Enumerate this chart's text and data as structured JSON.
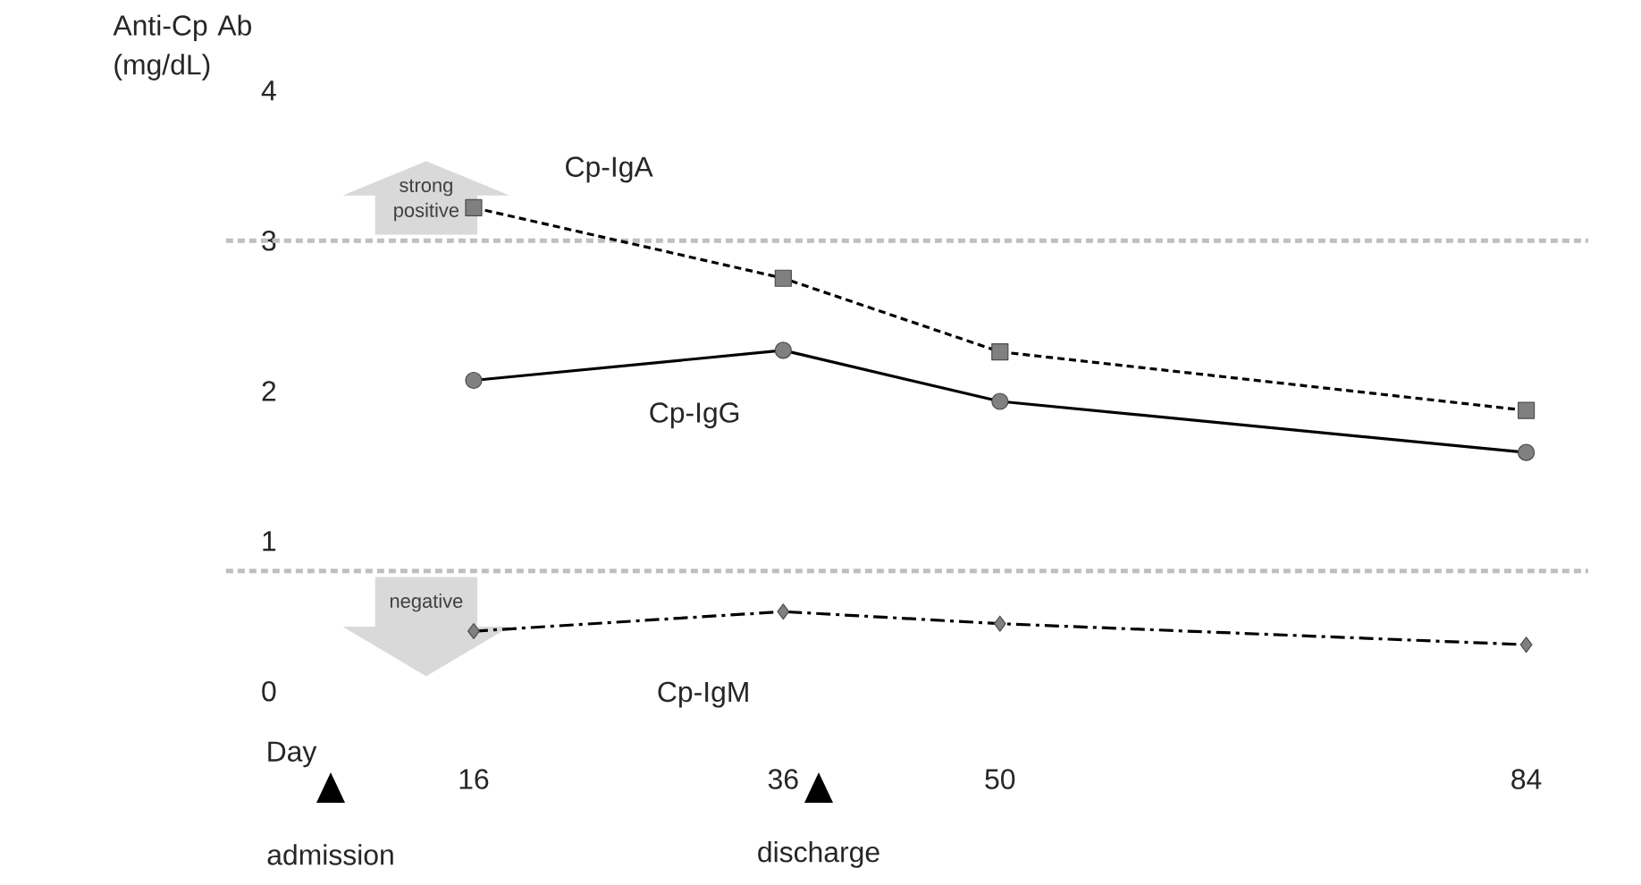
{
  "chart_data": {
    "type": "line",
    "xlabel": "Day",
    "ylabel": "Anti-Cp Ab (mg/dL)",
    "x": [
      16,
      36,
      50,
      84
    ],
    "xlim": [
      0,
      88
    ],
    "xticks": [
      16,
      36,
      50,
      84
    ],
    "ylim": [
      0,
      4
    ],
    "yticks": [
      0,
      1,
      2,
      3,
      4
    ],
    "series": [
      {
        "name": "Cp-IgA",
        "color": "#000000",
        "marker": "square",
        "line_style": "dashed",
        "values": [
          3.22,
          2.75,
          2.26,
          1.87
        ]
      },
      {
        "name": "Cp-IgG",
        "color": "#000000",
        "marker": "circle",
        "line_style": "solid",
        "values": [
          2.07,
          2.27,
          1.93,
          1.59
        ]
      },
      {
        "name": "Cp-IgM",
        "color": "#000000",
        "marker": "diamond",
        "line_style": "dashdot",
        "values": [
          0.4,
          0.53,
          0.45,
          0.31
        ]
      }
    ],
    "ref_lines": [
      {
        "axis": "y",
        "value": 3,
        "label": "strong positive",
        "color": "#bfbfbf",
        "line_style": "dashed"
      },
      {
        "axis": "y",
        "value": 0.8,
        "label": "negative",
        "color": "#bfbfbf",
        "line_style": "dashed"
      }
    ],
    "annotations": [
      "admission",
      "discharge"
    ]
  }
}
